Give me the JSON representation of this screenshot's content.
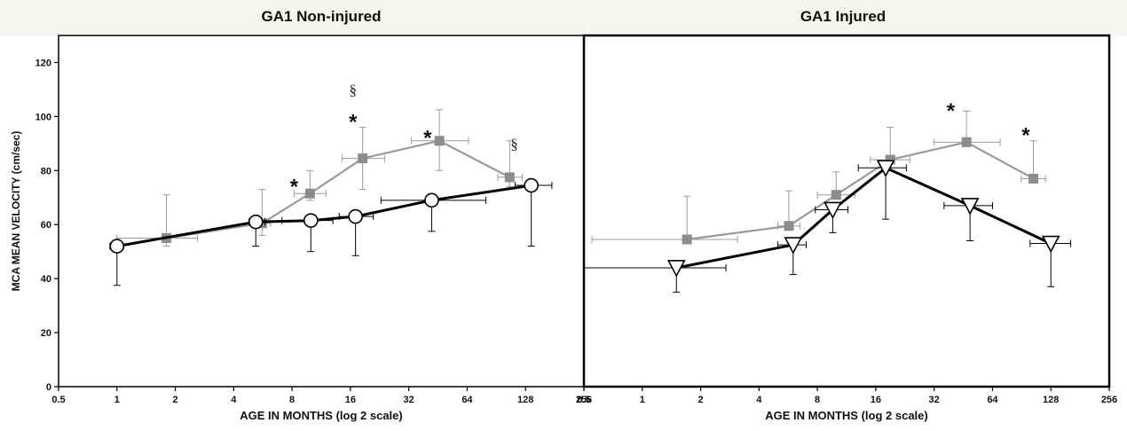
{
  "chart_data": [
    {
      "type": "line",
      "title": "GA1 Non-injured",
      "xlabel": "AGE IN MONTHS (log 2 scale)",
      "ylabel": "MCA MEAN VELOCITY (cm/sec)",
      "x_scale": "log2",
      "xlim": [
        0.5,
        256
      ],
      "ylim": [
        0,
        130
      ],
      "xticks": [
        "0.5",
        "1",
        "2",
        "4",
        "8",
        "16",
        "32",
        "64",
        "128",
        "256"
      ],
      "yticks": [
        "0",
        "20",
        "40",
        "60",
        "80",
        "100",
        "120"
      ],
      "grid": false,
      "series": [
        {
          "color": "#8c8c8c",
          "marker": "square",
          "points": [
            {
              "x": 1.8,
              "y": 55,
              "ylow": 52,
              "yhigh": 71,
              "xlow": 1.0,
              "xhigh": 2.6
            },
            {
              "x": 5.6,
              "y": 60.5,
              "ylow": 56,
              "yhigh": 73,
              "xlow": 5.1,
              "xhigh": 6.2
            },
            {
              "x": 9.9,
              "y": 71.5,
              "ylow": 69,
              "yhigh": 80,
              "xlow": 8.2,
              "xhigh": 12.0
            },
            {
              "x": 18.5,
              "y": 84.5,
              "ylow": 73,
              "yhigh": 96,
              "xlow": 14.5,
              "xhigh": 24.0
            },
            {
              "x": 46,
              "y": 91,
              "ylow": 80,
              "yhigh": 102.5,
              "xlow": 33,
              "xhigh": 65
            },
            {
              "x": 106,
              "y": 77.5,
              "ylow": 74,
              "yhigh": 91,
              "xlow": 92,
              "xhigh": 123
            }
          ]
        },
        {
          "color": "#000000",
          "marker": "circle-open",
          "points": [
            {
              "x": 1.0,
              "y": 52,
              "ylow": 37.5,
              "yhigh": 52,
              "xlow": 0.92,
              "xhigh": 1.08
            },
            {
              "x": 5.2,
              "y": 61,
              "ylow": 52,
              "yhigh": 61,
              "xlow": 4.8,
              "xhigh": 5.8
            },
            {
              "x": 10.0,
              "y": 61.5,
              "ylow": 50,
              "yhigh": 61.5,
              "xlow": 7.1,
              "xhigh": 13.0
            },
            {
              "x": 17.0,
              "y": 63,
              "ylow": 48.5,
              "yhigh": 63,
              "xlow": 14.0,
              "xhigh": 21.0
            },
            {
              "x": 42.0,
              "y": 69,
              "ylow": 57.5,
              "yhigh": 69,
              "xlow": 23.0,
              "xhigh": 80.0
            },
            {
              "x": 137.0,
              "y": 74.5,
              "ylow": 52,
              "yhigh": 74.5,
              "xlow": 113,
              "xhigh": 175
            }
          ]
        }
      ],
      "annotations": [
        {
          "text": "§",
          "x": 16.5,
          "y": 110
        },
        {
          "text": "*",
          "x": 16.5,
          "y": 100
        },
        {
          "text": "*",
          "x": 8.2,
          "y": 76
        },
        {
          "text": "*",
          "x": 40.0,
          "y": 94
        },
        {
          "text": "§",
          "x": 112.0,
          "y": 90
        }
      ]
    },
    {
      "type": "line",
      "title": "GA1 Injured",
      "xlabel": "AGE IN MONTHS (log 2 scale)",
      "ylabel": "",
      "x_scale": "log2",
      "xlim": [
        0.5,
        256
      ],
      "ylim": [
        0,
        130
      ],
      "xticks": [
        "0.5",
        "1",
        "2",
        "4",
        "8",
        "16",
        "32",
        "64",
        "128",
        "256"
      ],
      "yticks": [],
      "grid": false,
      "series": [
        {
          "color": "#8c8c8c",
          "marker": "square",
          "points": [
            {
              "x": 1.7,
              "y": 54.5,
              "ylow": 54.5,
              "yhigh": 70.5,
              "xlow": 0.55,
              "xhigh": 3.1
            },
            {
              "x": 5.7,
              "y": 59.5,
              "ylow": 59.5,
              "yhigh": 72.5,
              "xlow": 5.0,
              "xhigh": 6.5
            },
            {
              "x": 10.0,
              "y": 71,
              "ylow": 71,
              "yhigh": 79.5,
              "xlow": 8.0,
              "xhigh": 12.5
            },
            {
              "x": 19.0,
              "y": 84,
              "ylow": 84,
              "yhigh": 96,
              "xlow": 15.0,
              "xhigh": 24.0
            },
            {
              "x": 47,
              "y": 90.5,
              "ylow": 90.5,
              "yhigh": 102,
              "xlow": 32,
              "xhigh": 70
            },
            {
              "x": 104,
              "y": 77,
              "ylow": 77,
              "yhigh": 91,
              "xlow": 90,
              "xhigh": 120
            }
          ]
        },
        {
          "color": "#000000",
          "marker": "triangle-down-open",
          "points": [
            {
              "x": 1.5,
              "y": 44,
              "ylow": 35,
              "yhigh": 44,
              "xlow": 0.5,
              "xhigh": 2.7
            },
            {
              "x": 6.0,
              "y": 52.5,
              "ylow": 41.5,
              "yhigh": 52.5,
              "xlow": 5.0,
              "xhigh": 7.0
            },
            {
              "x": 9.6,
              "y": 65.5,
              "ylow": 57,
              "yhigh": 65.5,
              "xlow": 7.8,
              "xhigh": 11.5
            },
            {
              "x": 18.0,
              "y": 81,
              "ylow": 62,
              "yhigh": 81,
              "xlow": 13.0,
              "xhigh": 23.0
            },
            {
              "x": 49,
              "y": 67,
              "ylow": 54,
              "yhigh": 67,
              "xlow": 36,
              "xhigh": 64
            },
            {
              "x": 128,
              "y": 53,
              "ylow": 37,
              "yhigh": 53,
              "xlow": 100,
              "xhigh": 162
            }
          ]
        }
      ],
      "annotations": [
        {
          "text": "*",
          "x": 39.0,
          "y": 104
        },
        {
          "text": "*",
          "x": 95.0,
          "y": 95
        }
      ]
    }
  ]
}
